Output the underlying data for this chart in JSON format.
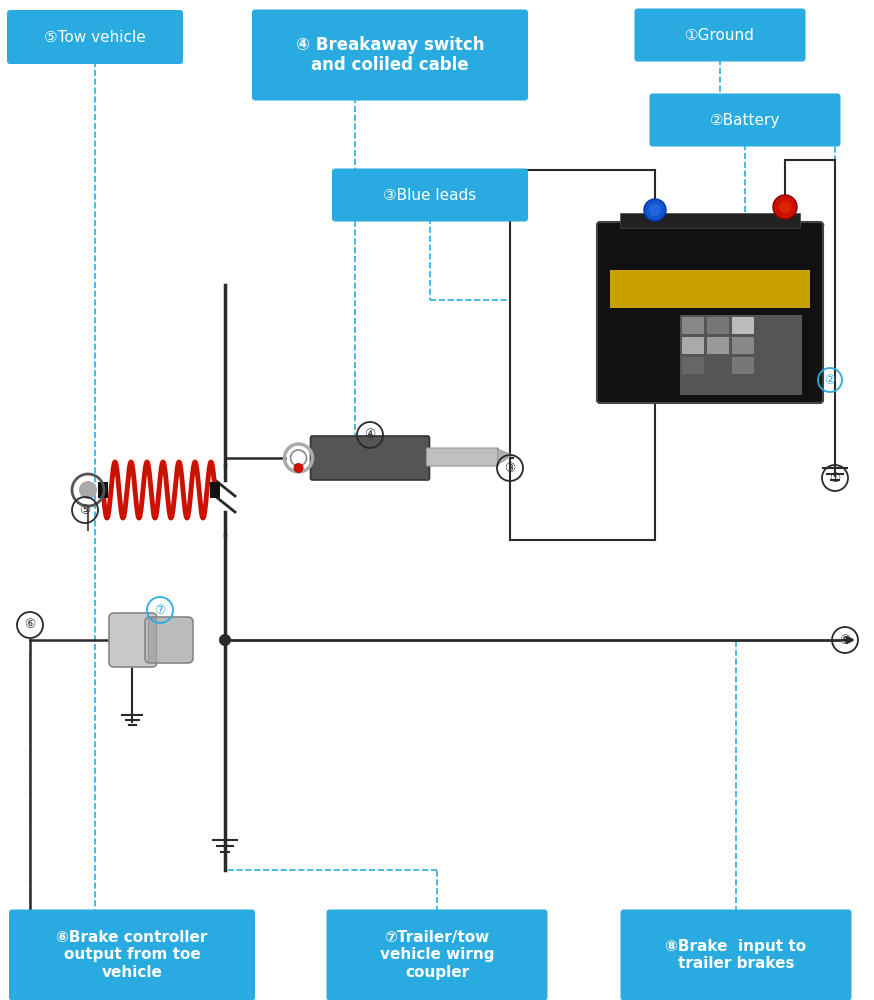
{
  "bg_color": "#ffffff",
  "blue_box_color": "#29ABE2",
  "white_text": "#ffffff",
  "wire_color": "#2a2a2a",
  "dashed_color": "#29ABE2",
  "red_wire": "#cc1100",
  "labels": {
    "lbl1": "①Ground",
    "lbl2": "②Battery",
    "lbl3": "③Blue leads",
    "lbl4": "④ Breakaway switch\nand coliled cable",
    "lbl5": "⑤Tow vehicle",
    "lbl6": "⑥Brake controller\noutput from toe\nvehicle",
    "lbl7": "⑦Trailer/tow\nvehicle wirng\ncoupler",
    "lbl8": "⑧Brake  input to\ntrailer brakes"
  }
}
